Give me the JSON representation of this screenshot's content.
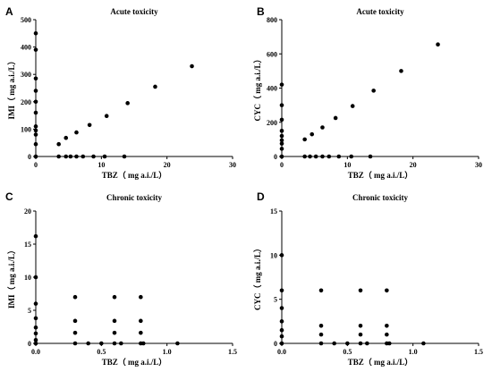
{
  "chart_data": [
    {
      "panel": "A",
      "type": "scatter",
      "title": "Acute toxicity",
      "xlabel": "TBZ（ mg a.i./L）",
      "ylabel": "IMI（ mg a.i./L）",
      "xlim": [
        0,
        30
      ],
      "ylim": [
        0,
        500
      ],
      "xticks": [
        0,
        10,
        20,
        30
      ],
      "yticks": [
        0,
        100,
        200,
        300,
        400,
        500
      ],
      "grid": false,
      "points": [
        [
          0,
          450
        ],
        [
          0,
          390
        ],
        [
          0,
          285
        ],
        [
          0,
          240
        ],
        [
          0,
          200
        ],
        [
          0,
          160
        ],
        [
          0,
          110
        ],
        [
          0,
          95
        ],
        [
          0,
          80
        ],
        [
          0,
          45
        ],
        [
          0,
          0
        ],
        [
          3.5,
          45
        ],
        [
          4.6,
          68
        ],
        [
          6.2,
          88
        ],
        [
          8.2,
          115
        ],
        [
          10.8,
          148
        ],
        [
          14,
          195
        ],
        [
          18.2,
          255
        ],
        [
          23.8,
          330
        ],
        [
          3.5,
          0
        ],
        [
          4.6,
          0
        ],
        [
          5.3,
          0
        ],
        [
          6.2,
          0
        ],
        [
          7.2,
          0
        ],
        [
          8.8,
          0
        ],
        [
          10.5,
          0
        ],
        [
          13.5,
          0
        ]
      ]
    },
    {
      "panel": "B",
      "type": "scatter",
      "title": "Acute toxicity",
      "xlabel": "TBZ（ mg a.i./L）",
      "ylabel": "CYC（ mg a.i./L）",
      "xlim": [
        0,
        30
      ],
      "ylim": [
        0,
        800
      ],
      "xticks": [
        0,
        10,
        20,
        30
      ],
      "yticks": [
        0,
        200,
        400,
        600,
        800
      ],
      "grid": false,
      "points": [
        [
          0,
          420
        ],
        [
          0,
          300
        ],
        [
          0,
          215
        ],
        [
          0,
          150
        ],
        [
          0,
          120
        ],
        [
          0,
          95
        ],
        [
          0,
          75
        ],
        [
          0,
          45
        ],
        [
          0,
          0
        ],
        [
          3.5,
          100
        ],
        [
          4.6,
          130
        ],
        [
          6.2,
          170
        ],
        [
          8.2,
          225
        ],
        [
          10.8,
          295
        ],
        [
          14,
          385
        ],
        [
          18.2,
          500
        ],
        [
          23.8,
          655
        ],
        [
          3.5,
          0
        ],
        [
          4.3,
          0
        ],
        [
          5.2,
          0
        ],
        [
          6.2,
          0
        ],
        [
          7.2,
          0
        ],
        [
          8.7,
          0
        ],
        [
          10.6,
          0
        ],
        [
          13.5,
          0
        ]
      ]
    },
    {
      "panel": "C",
      "type": "scatter",
      "title": "Chronic toxicity",
      "xlabel": "TBZ（ mg a.i./L）",
      "ylabel": "IMI（ mg a.i./L）",
      "xlim": [
        0,
        1.5
      ],
      "ylim": [
        0,
        20
      ],
      "xticks": [
        0,
        0.5,
        1.0,
        1.5
      ],
      "yticks": [
        0,
        5,
        10,
        15,
        20
      ],
      "grid": false,
      "points": [
        [
          0,
          16.2
        ],
        [
          0,
          10
        ],
        [
          0,
          6
        ],
        [
          0,
          3.8
        ],
        [
          0,
          2.4
        ],
        [
          0,
          1.5
        ],
        [
          0,
          0.5
        ],
        [
          0,
          0
        ],
        [
          0.3,
          7
        ],
        [
          0.3,
          3.4
        ],
        [
          0.3,
          1.6
        ],
        [
          0.3,
          0
        ],
        [
          0.6,
          7
        ],
        [
          0.6,
          3.4
        ],
        [
          0.6,
          1.6
        ],
        [
          0.6,
          0
        ],
        [
          0.8,
          7
        ],
        [
          0.8,
          3.4
        ],
        [
          0.8,
          1.6
        ],
        [
          0.8,
          0
        ],
        [
          0.4,
          0
        ],
        [
          0.5,
          0
        ],
        [
          0.65,
          0
        ],
        [
          0.82,
          0
        ],
        [
          1.08,
          0
        ]
      ]
    },
    {
      "panel": "D",
      "type": "scatter",
      "title": "Chronic toxicity",
      "xlabel": "TBZ（ mg a.i./L）",
      "ylabel": "CYC（ mg a.i./L）",
      "xlim": [
        0,
        1.5
      ],
      "ylim": [
        0,
        15
      ],
      "xticks": [
        0,
        0.5,
        1.0,
        1.5
      ],
      "yticks": [
        0,
        5,
        10,
        15
      ],
      "grid": false,
      "points": [
        [
          0,
          10
        ],
        [
          0,
          6
        ],
        [
          0,
          4
        ],
        [
          0,
          2.5
        ],
        [
          0,
          1.5
        ],
        [
          0,
          0.8
        ],
        [
          0,
          0
        ],
        [
          0.3,
          6
        ],
        [
          0.3,
          2
        ],
        [
          0.3,
          1
        ],
        [
          0.3,
          0
        ],
        [
          0.6,
          6
        ],
        [
          0.6,
          2
        ],
        [
          0.6,
          1
        ],
        [
          0.6,
          0
        ],
        [
          0.8,
          6
        ],
        [
          0.8,
          2
        ],
        [
          0.8,
          1
        ],
        [
          0.8,
          0
        ],
        [
          0.4,
          0
        ],
        [
          0.5,
          0
        ],
        [
          0.65,
          0
        ],
        [
          0.82,
          0
        ],
        [
          1.08,
          0
        ]
      ]
    }
  ]
}
